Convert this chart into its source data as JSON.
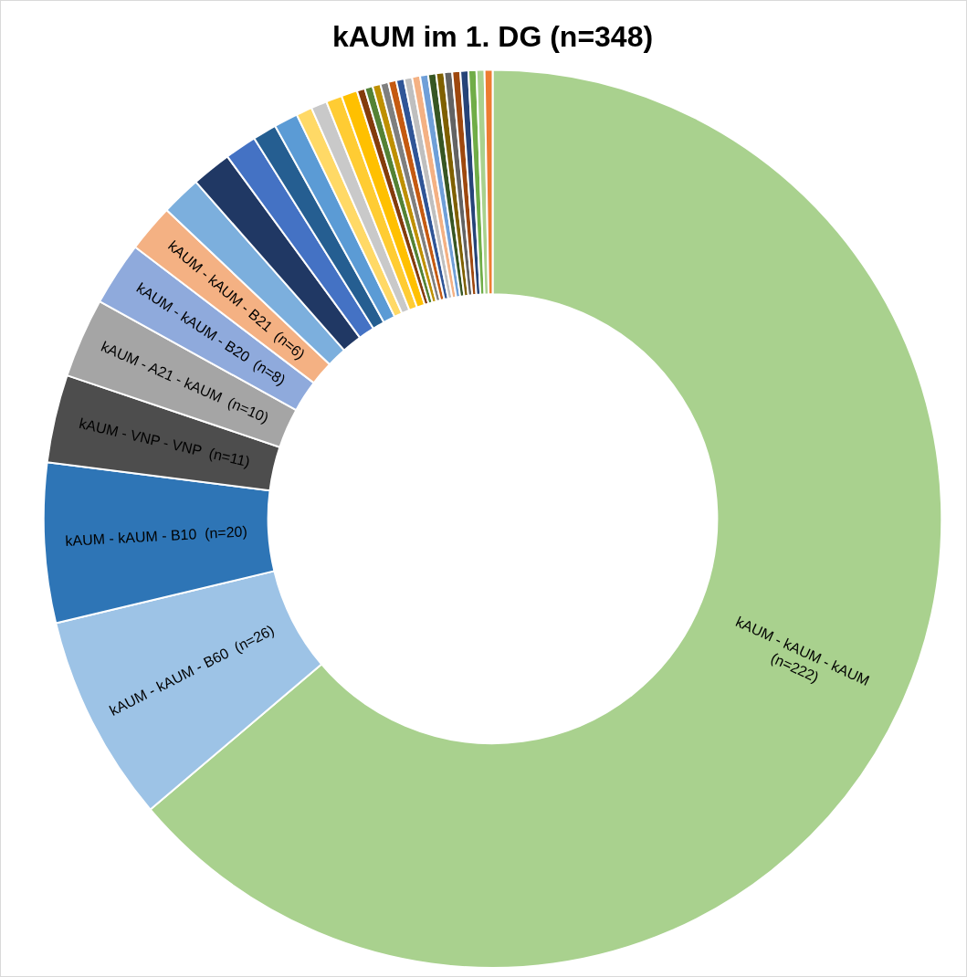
{
  "chart_data": {
    "type": "donut",
    "title": "kAUM im 1. DG (n=348)",
    "categories": [
      "kAUM - kAUM - kAUM",
      "kAUM - kAUM - B60",
      "kAUM - kAUM - B10",
      "kAUM - VNP - VNP",
      "kAUM - A21 - kAUM",
      "kAUM - kAUM - B20",
      "kAUM - kAUM - B21",
      null,
      null,
      null,
      null,
      null,
      null,
      null,
      null,
      null,
      null,
      null,
      null,
      null,
      null,
      null,
      null,
      null,
      null,
      null,
      null,
      null,
      null,
      null,
      null,
      null,
      null
    ],
    "values": [
      222,
      26,
      20,
      11,
      10,
      8,
      6,
      5,
      5,
      4,
      3,
      3,
      2,
      2,
      2,
      2,
      1,
      1,
      1,
      1,
      1,
      1,
      1,
      1,
      1,
      1,
      1,
      1,
      1,
      1,
      1,
      1,
      1
    ],
    "value_labels": [
      "(n=222)",
      "(n=26)",
      "(n=20)",
      "(n=11)",
      "(n=10)",
      "(n=8)",
      "(n=6)",
      null,
      null,
      null,
      null,
      null,
      null,
      null,
      null,
      null,
      null,
      null,
      null,
      null,
      null,
      null,
      null,
      null,
      null,
      null,
      null,
      null,
      null,
      null,
      null,
      null,
      null
    ],
    "colors": [
      "#a9d18e",
      "#9dc3e6",
      "#2e75b6",
      "#4d4d4d",
      "#a5a5a5",
      "#8faadc",
      "#f4b183",
      "#7cafdd",
      "#203864",
      "#4472c4",
      "#255e91",
      "#5b9bd5",
      "#ffd966",
      "#c9c9c9",
      "#ffcc33",
      "#ffc000",
      "#843c0c",
      "#548235",
      "#bf9000",
      "#7f7f7f",
      "#c55a11",
      "#2f5597",
      "#bfbfbf",
      "#f4b183",
      "#6f9fd8",
      "#375623",
      "#7f6000",
      "#636363",
      "#9e480e",
      "#264478",
      "#70ad47",
      "#a9d18e",
      "#ed7d31"
    ]
  }
}
